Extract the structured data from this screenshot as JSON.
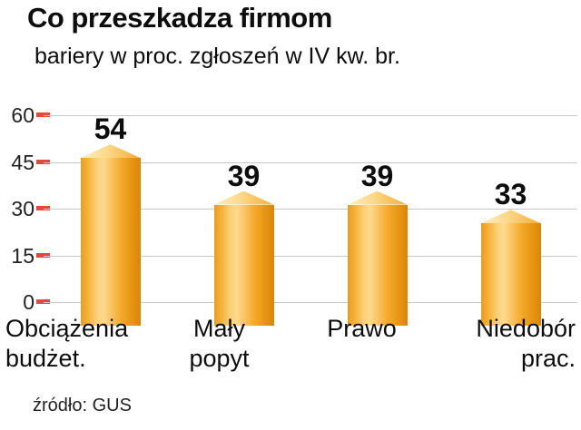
{
  "chart_data": {
    "type": "bar",
    "title": "Co przeszkadza firmom",
    "subtitle": "bariery w proc. zgłoszeń w IV kw. br.",
    "source": "źródło: GUS",
    "categories": [
      "Obciążenia\nbudżet.",
      "Mały\npopyt",
      "Prawo",
      "Niedobór\nprac."
    ],
    "values": [
      54,
      39,
      39,
      33
    ],
    "xlabel": "",
    "ylabel": "",
    "ylim": [
      0,
      60
    ],
    "yticks": [
      0,
      15,
      30,
      45,
      60
    ],
    "grid": true,
    "legend": "none",
    "colors": {
      "bar_main": "#f5ab2e",
      "bar_highlight": "#fdd98e",
      "bar_shadow": "#d8860c",
      "tick_mark": "#e2483d",
      "gridline": "#c8c8c8",
      "text": "#0d0d0d",
      "background": "#ffffff"
    }
  }
}
